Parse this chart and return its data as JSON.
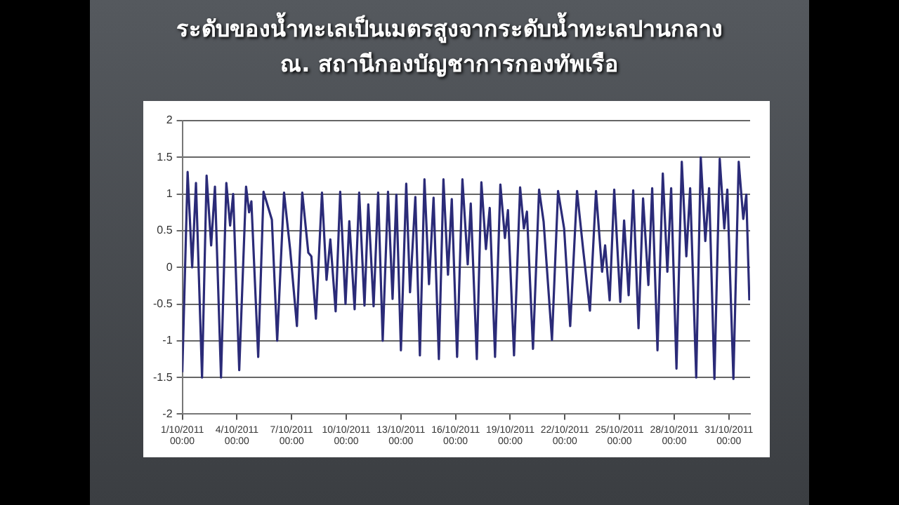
{
  "chart_data": {
    "type": "line",
    "title": "ระดับของน้ำทะเลเป็นเมตรสูงจากระดับน้ำทะเลปานกลาง\nณ. สถานีกองบัญชาการกองทัพเรือ",
    "x": [
      "2011-10-01T00:00",
      "2011-10-01T07:00",
      "2011-10-01T13:00",
      "2011-10-01T18:00",
      "2011-10-02T02:00",
      "2011-10-02T08:00",
      "2011-10-02T14:00",
      "2011-10-02T19:00",
      "2011-10-03T03:00",
      "2011-10-03T10:00",
      "2011-10-03T15:00",
      "2011-10-03T19:00",
      "2011-10-04T03:00",
      "2011-10-04T12:00",
      "2011-10-04T16:00",
      "2011-10-04T19:00",
      "2011-10-05T04:00",
      "2011-10-05T11:00",
      "2011-10-05T22:00",
      "2011-10-06T05:00",
      "2011-10-06T14:00",
      "2011-10-06T22:00",
      "2011-10-07T07:00",
      "2011-10-07T14:00",
      "2011-10-07T22:00",
      "2011-10-08T02:00",
      "2011-10-08T08:00",
      "2011-10-08T16:00",
      "2011-10-08T22:00",
      "2011-10-09T03:00",
      "2011-10-09T10:00",
      "2011-10-09T16:00",
      "2011-10-09T23:00",
      "2011-10-10T04:00",
      "2011-10-10T11:00",
      "2011-10-10T17:00",
      "2011-10-11T00:00",
      "2011-10-11T05:00",
      "2011-10-11T12:00",
      "2011-10-11T18:00",
      "2011-10-12T00:00",
      "2011-10-12T07:00",
      "2011-10-12T13:00",
      "2011-10-12T18:00",
      "2011-10-13T00:00",
      "2011-10-13T07:00",
      "2011-10-13T12:00",
      "2011-10-13T19:00",
      "2011-10-14T01:00",
      "2011-10-14T07:00",
      "2011-10-14T13:00",
      "2011-10-14T19:00",
      "2011-10-15T02:00",
      "2011-10-15T08:00",
      "2011-10-15T14:00",
      "2011-10-15T19:00",
      "2011-10-16T02:00",
      "2011-10-16T09:00",
      "2011-10-16T16:00",
      "2011-10-16T20:00",
      "2011-10-17T04:00",
      "2011-10-17T10:00",
      "2011-10-17T16:00",
      "2011-10-17T21:00",
      "2011-10-18T04:00",
      "2011-10-18T11:00",
      "2011-10-18T17:00",
      "2011-10-18T21:00",
      "2011-10-19T05:00",
      "2011-10-19T13:00",
      "2011-10-19T18:00",
      "2011-10-19T22:00",
      "2011-10-20T06:00",
      "2011-10-20T14:00",
      "2011-10-20T20:00",
      "2011-10-21T07:00",
      "2011-10-21T15:00",
      "2011-10-21T23:00",
      "2011-10-22T07:00",
      "2011-10-22T16:00",
      "2011-10-23T00:00",
      "2011-10-23T09:00",
      "2011-10-23T17:00",
      "2011-10-24T01:00",
      "2011-10-24T05:00",
      "2011-10-24T11:00",
      "2011-10-24T17:00",
      "2011-10-25T01:00",
      "2011-10-25T06:00",
      "2011-10-25T12:00",
      "2011-10-25T18:00",
      "2011-10-26T01:00",
      "2011-10-26T07:00",
      "2011-10-26T14:00",
      "2011-10-26T19:00",
      "2011-10-27T02:00",
      "2011-10-27T09:00",
      "2011-10-27T15:00",
      "2011-10-27T20:00",
      "2011-10-28T03:00",
      "2011-10-28T10:00",
      "2011-10-28T16:00",
      "2011-10-28T21:00",
      "2011-10-29T05:00",
      "2011-10-29T11:00",
      "2011-10-29T17:00",
      "2011-10-29T22:00",
      "2011-10-30T05:00",
      "2011-10-30T12:00",
      "2011-10-30T18:00",
      "2011-10-30T22:00",
      "2011-10-31T06:00",
      "2011-10-31T13:00",
      "2011-10-31T19:00",
      "2011-10-31T23:00",
      "2011-11-01T03:00"
    ],
    "series": [
      {
        "color": "#2b2b78",
        "values": [
          -1.43,
          1.3,
          0.0,
          1.15,
          -1.5,
          1.25,
          0.3,
          1.1,
          -1.5,
          1.15,
          0.57,
          1.0,
          -1.4,
          1.1,
          0.75,
          0.9,
          -1.22,
          1.03,
          0.65,
          -1.0,
          1.02,
          0.25,
          -0.8,
          1.02,
          0.2,
          0.15,
          -0.7,
          1.02,
          -0.17,
          0.38,
          -0.6,
          1.03,
          -0.5,
          0.63,
          -0.57,
          1.02,
          -0.52,
          0.86,
          -0.53,
          1.02,
          -1.0,
          1.03,
          -0.43,
          0.99,
          -1.13,
          1.14,
          -0.34,
          0.96,
          -1.2,
          1.2,
          -0.23,
          0.95,
          -1.25,
          1.2,
          -0.1,
          0.93,
          -1.22,
          1.2,
          0.04,
          0.87,
          -1.25,
          1.16,
          0.25,
          0.81,
          -1.22,
          1.13,
          0.4,
          0.78,
          -1.2,
          1.09,
          0.53,
          0.76,
          -1.11,
          1.06,
          0.62,
          -0.99,
          1.04,
          0.53,
          -0.8,
          1.04,
          0.25,
          -0.59,
          1.04,
          -0.06,
          0.3,
          -0.45,
          1.06,
          -0.47,
          0.64,
          -0.38,
          1.05,
          -0.83,
          0.94,
          -0.24,
          1.08,
          -1.13,
          1.28,
          -0.06,
          1.08,
          -1.38,
          1.44,
          0.15,
          1.08,
          -1.5,
          1.5,
          0.36,
          1.08,
          -1.52,
          1.48,
          0.53,
          1.06,
          -1.52,
          1.44,
          0.66,
          0.99,
          -0.45
        ]
      }
    ],
    "xlim": [
      "2011-10-01T00:00",
      "2011-11-01T04:00"
    ],
    "xticks": [
      {
        "value": "2011-10-01T00:00",
        "label": "1/10/2011\n00:00"
      },
      {
        "value": "2011-10-04T00:00",
        "label": "4/10/2011\n00:00"
      },
      {
        "value": "2011-10-07T00:00",
        "label": "7/10/2011\n00:00"
      },
      {
        "value": "2011-10-10T00:00",
        "label": "10/10/2011\n00:00"
      },
      {
        "value": "2011-10-13T00:00",
        "label": "13/10/2011\n00:00"
      },
      {
        "value": "2011-10-16T00:00",
        "label": "16/10/2011\n00:00"
      },
      {
        "value": "2011-10-19T00:00",
        "label": "19/10/2011\n00:00"
      },
      {
        "value": "2011-10-22T00:00",
        "label": "22/10/2011\n00:00"
      },
      {
        "value": "2011-10-25T00:00",
        "label": "25/10/2011\n00:00"
      },
      {
        "value": "2011-10-28T00:00",
        "label": "28/10/2011\n00:00"
      },
      {
        "value": "2011-10-31T00:00",
        "label": "31/10/2011\n00:00"
      }
    ],
    "ylim": [
      -2,
      2
    ],
    "yticks": [
      -2,
      -1.5,
      -1,
      -0.5,
      0,
      0.5,
      1,
      1.5,
      2
    ],
    "grid": "y",
    "legend": false,
    "marker": "none",
    "line_style": "solid"
  }
}
